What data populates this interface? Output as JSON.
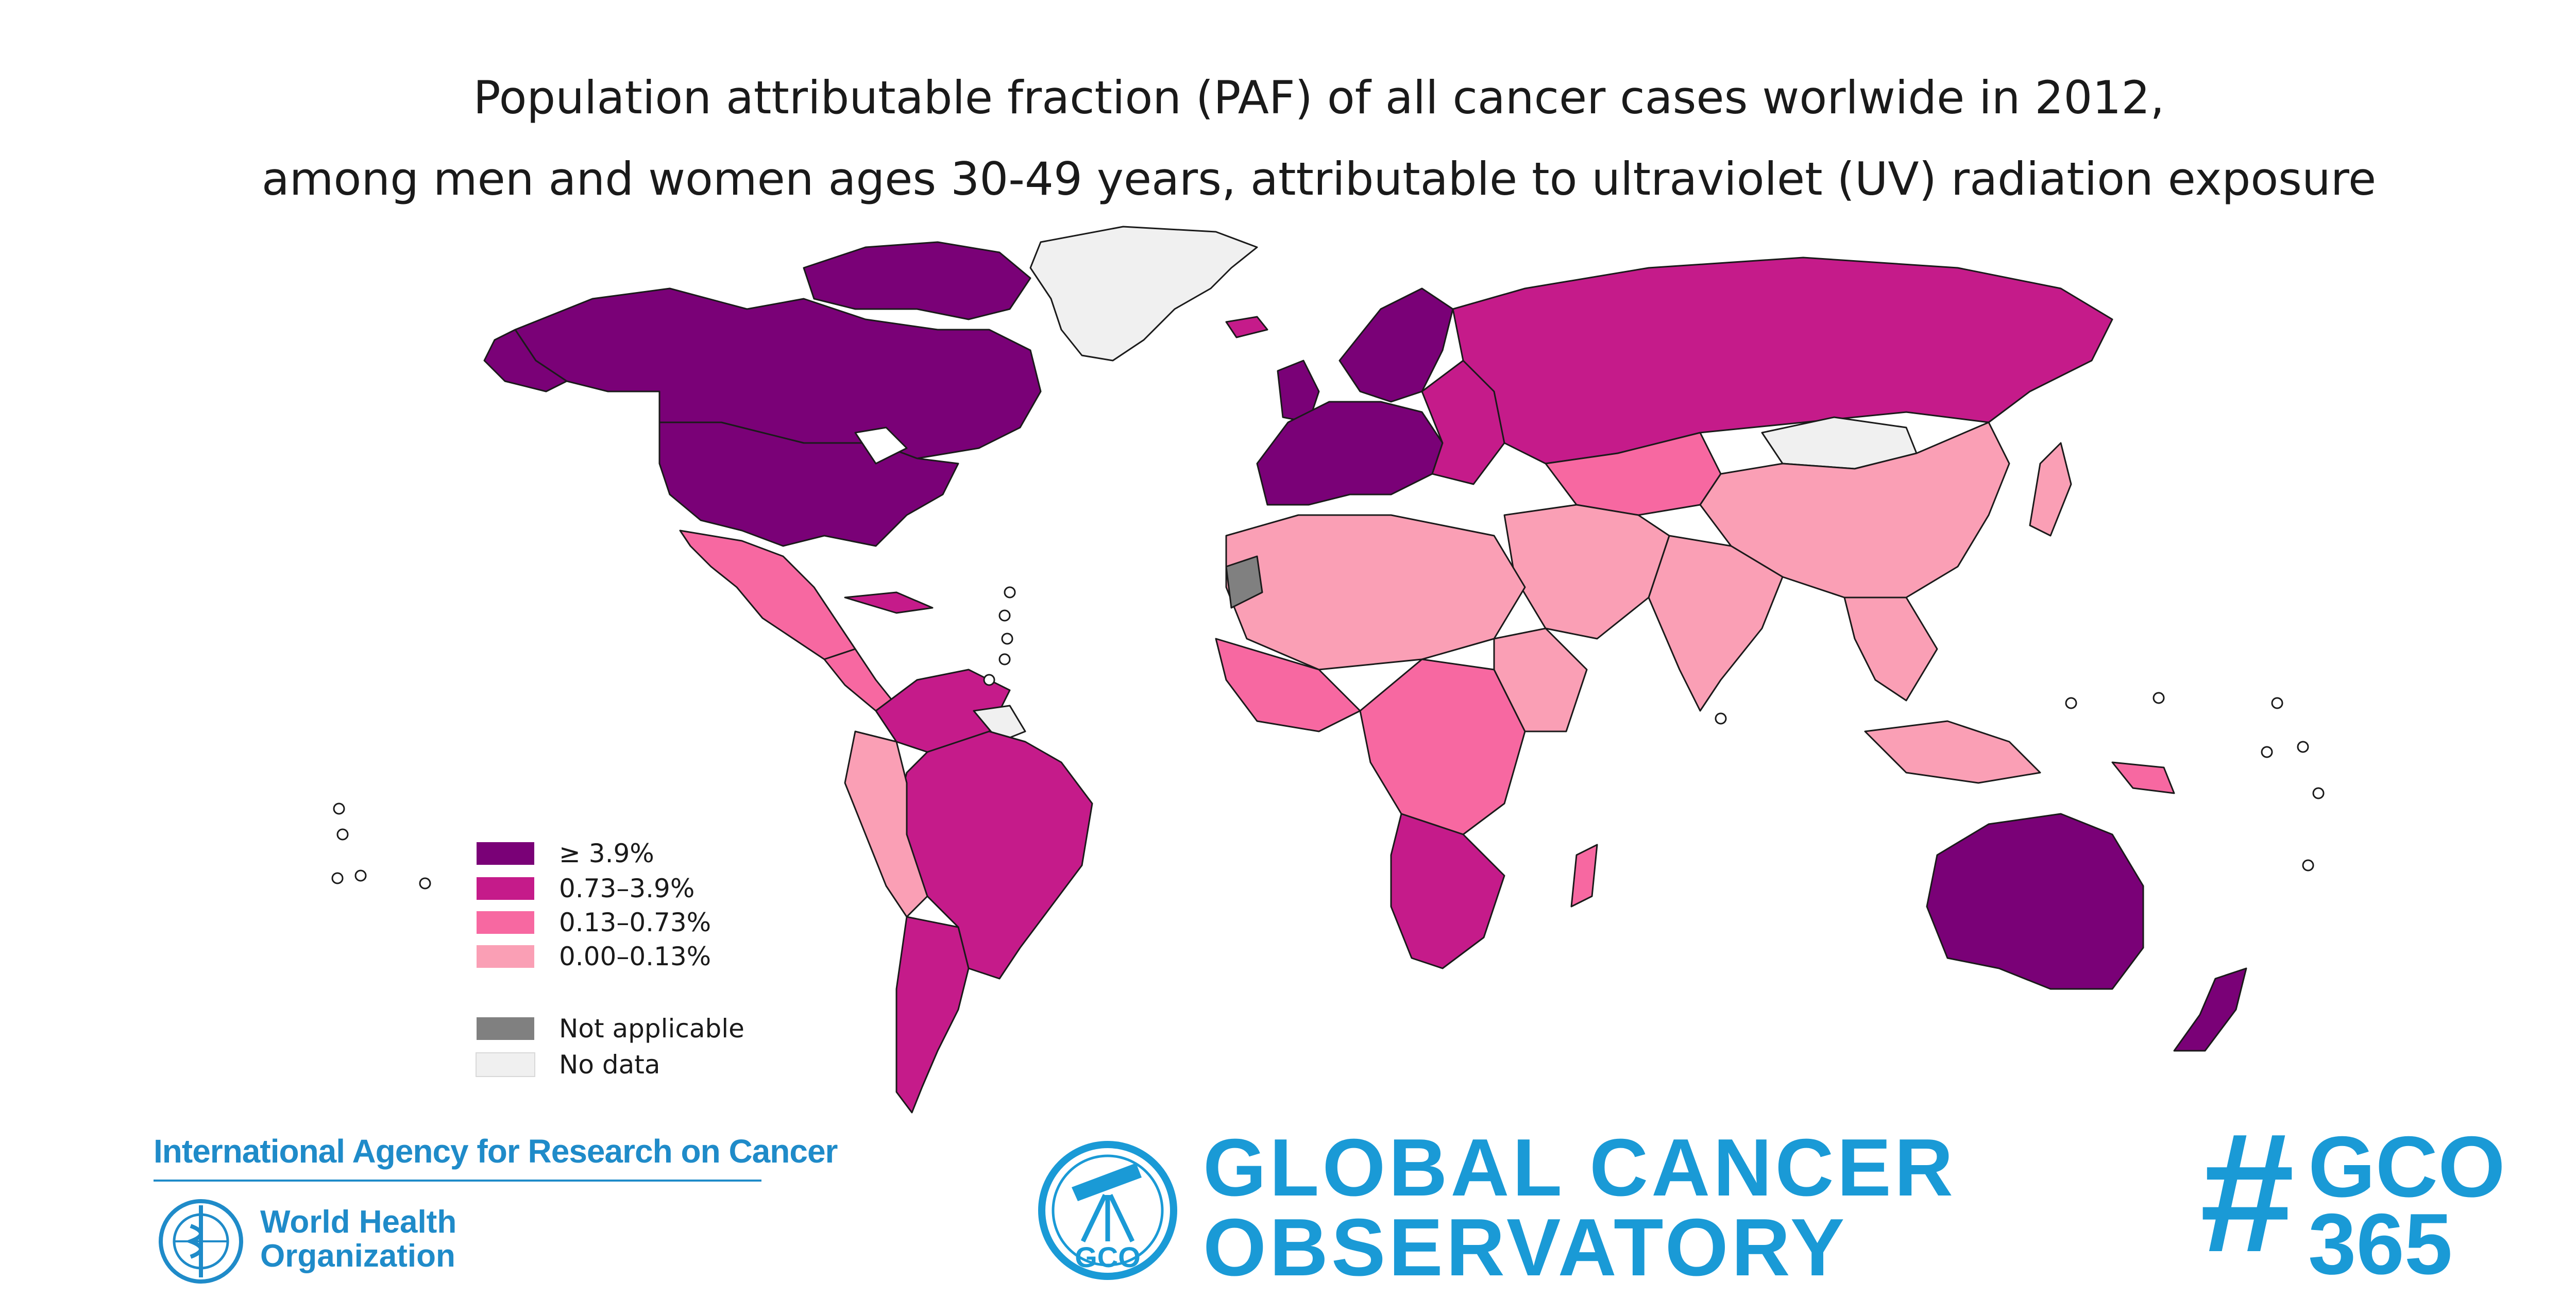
{
  "title": {
    "line1": "Population attributable fraction (PAF) of all cancer cases worlwide in 2012,",
    "line2": "among men and women ages 30-49 years, attributable to ultraviolet (UV) radiation exposure"
  },
  "legend": {
    "items": [
      {
        "label": "≥ 3.9%",
        "color": "#7a0177"
      },
      {
        "label": "0.73–3.9%",
        "color": "#c51b8a"
      },
      {
        "label": "0.13–0.73%",
        "color": "#f768a1"
      },
      {
        "label": "0.00–0.13%",
        "color": "#fa9fb5"
      },
      {
        "label": "Not applicable",
        "color": "#808080"
      },
      {
        "label": "No data",
        "color": "#f0f0f0"
      }
    ]
  },
  "footer": {
    "iarc": "International Agency for Research on Cancer",
    "who_line1": "World Health",
    "who_line2": "Organization",
    "gco_emblem_text": "GCO",
    "gco_line1": "GLOBAL CANCER",
    "gco_line2": "OBSERVATORY",
    "hashtag_symbol": "#",
    "hashtag_line1": "GCO",
    "hashtag_line2": "365"
  },
  "colors": {
    "brand_blue": "#1a9ad6",
    "iarc_blue": "#1f8bc9",
    "border": "#1a1a1a"
  },
  "icons": [
    "who-emblem-icon",
    "gco-telescope-icon"
  ]
}
